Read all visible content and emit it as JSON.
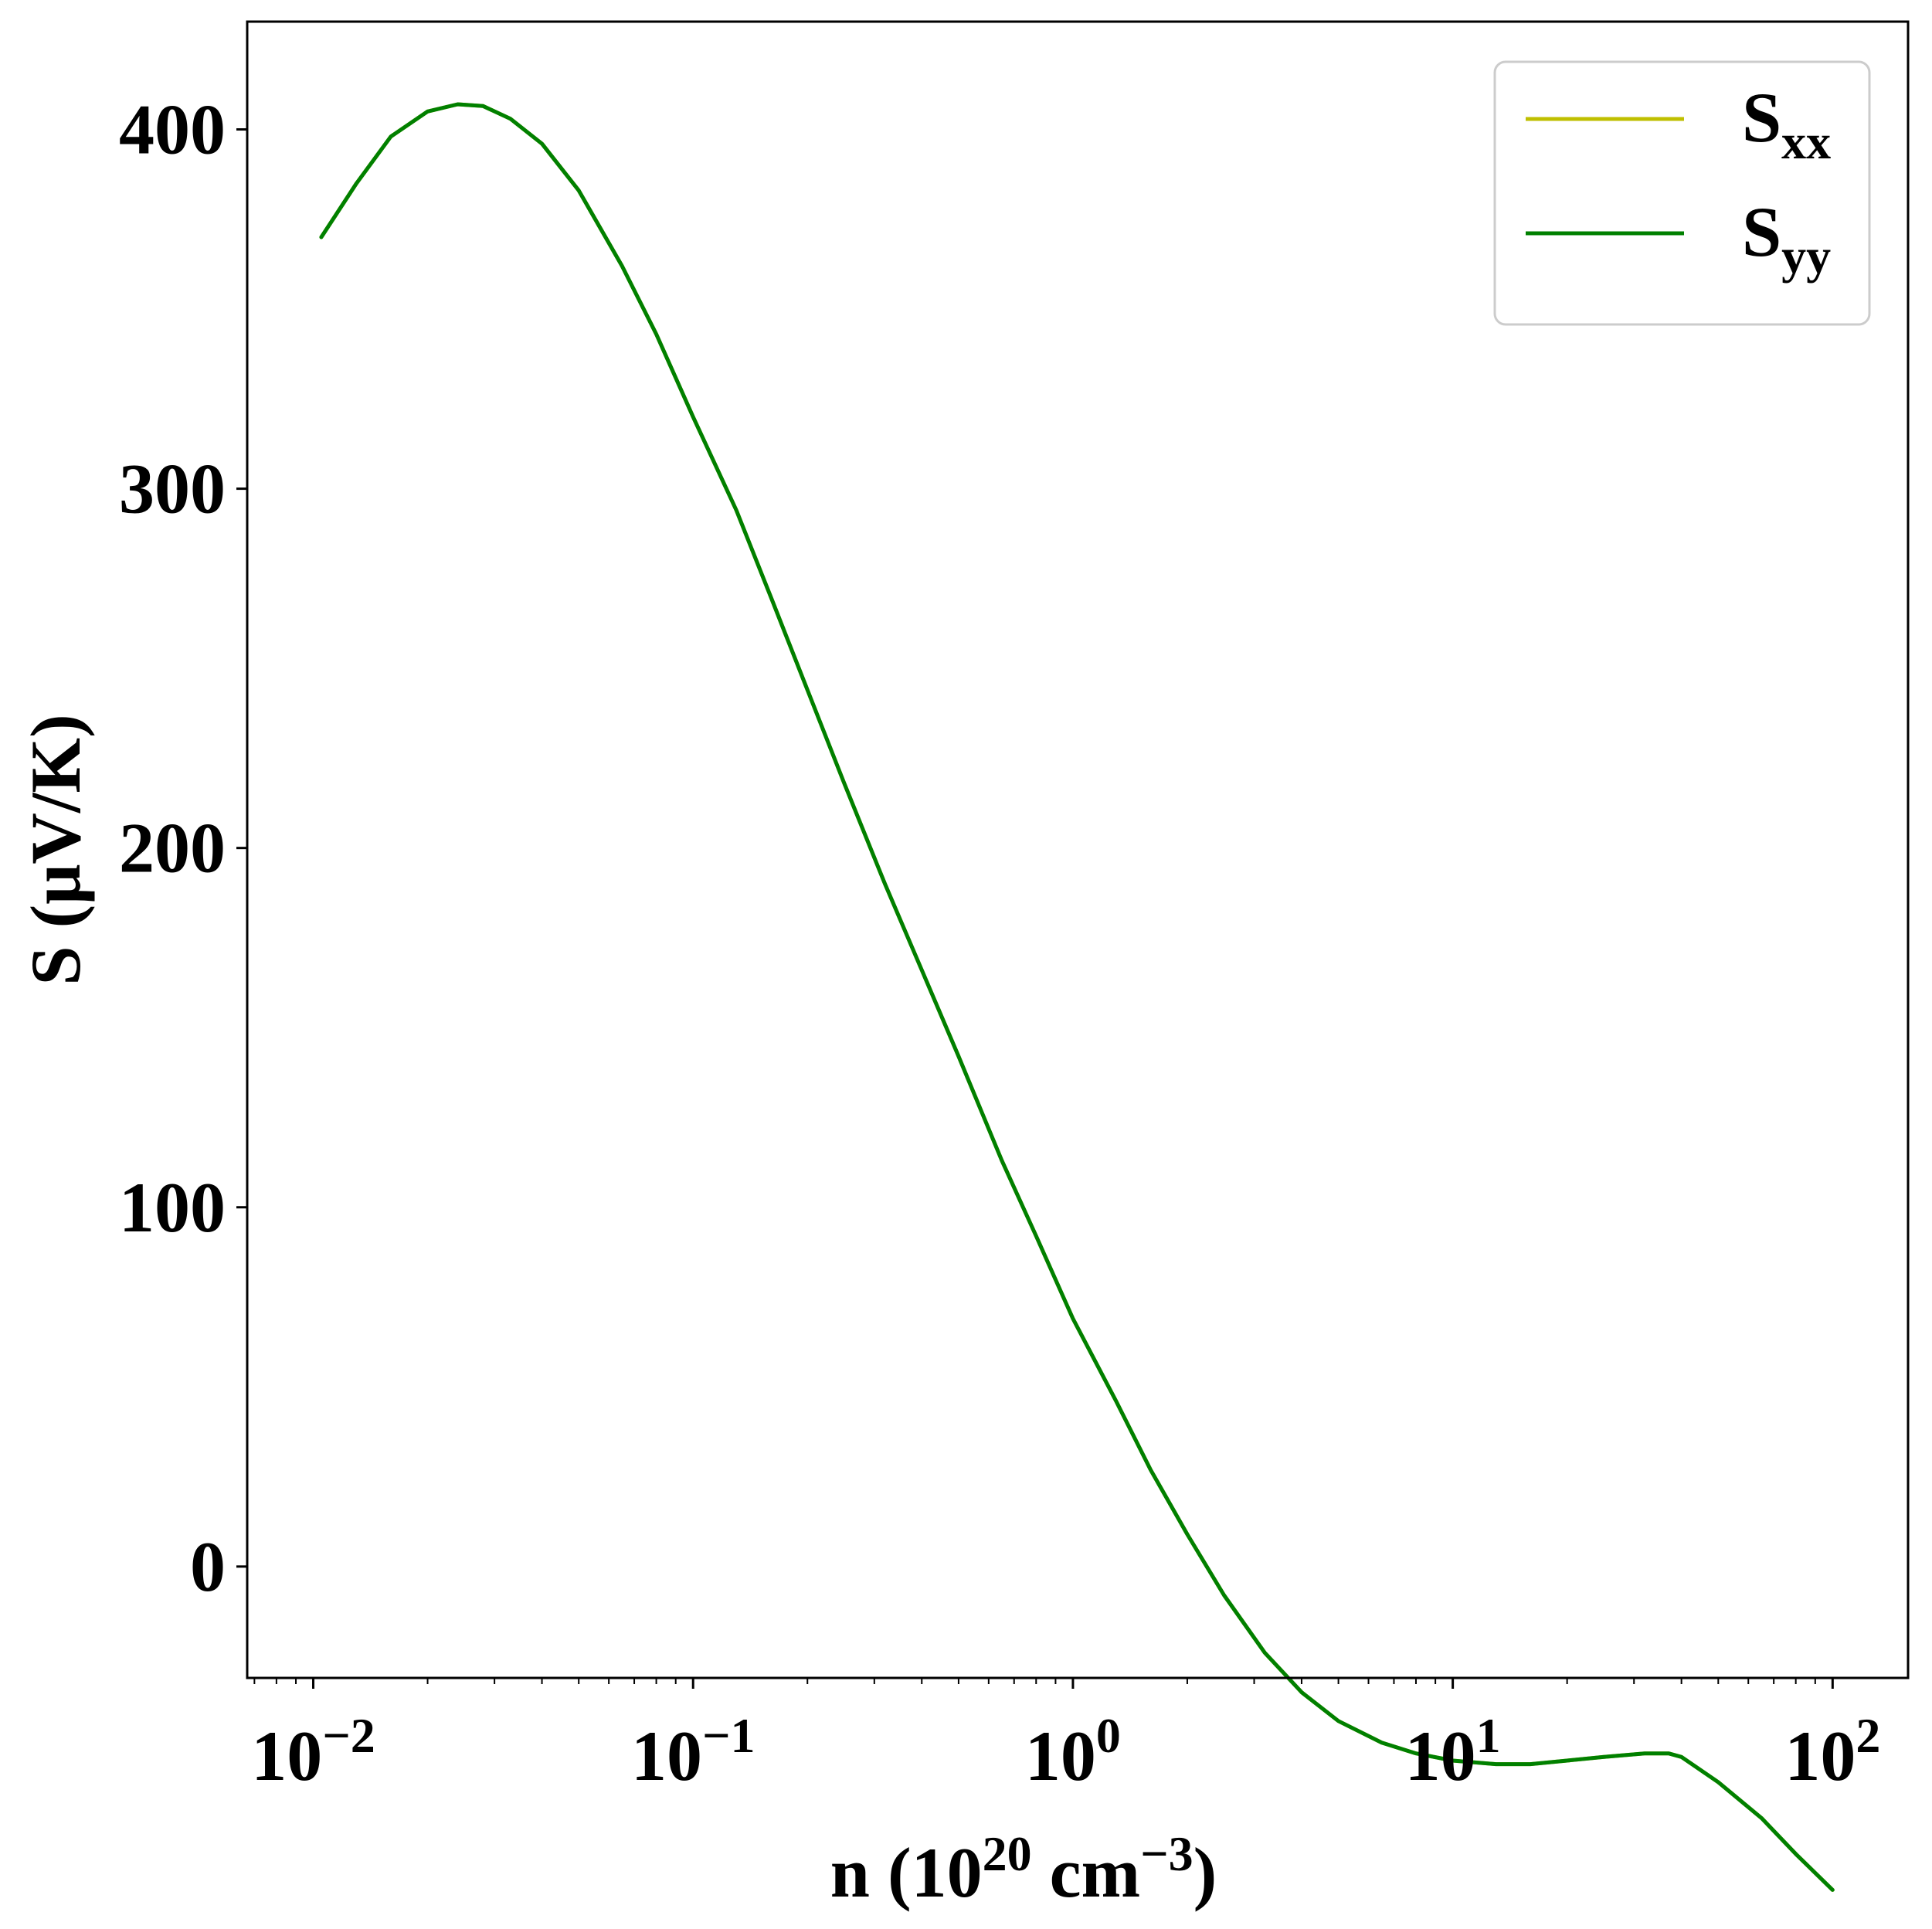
{
  "chart_data": {
    "type": "line",
    "title": "",
    "xlabel": {
      "base": "n (10",
      "exp1": "20",
      "mid": " cm",
      "exp2": "−3",
      "end": ")"
    },
    "ylabel": "S (μV/K)",
    "xscale": "log",
    "xlim": [
      0.0067,
      158
    ],
    "ylim": [
      -31,
      430
    ],
    "xticks": [
      {
        "value": 0.01,
        "base": "10",
        "exp": "−2"
      },
      {
        "value": 0.1,
        "base": "10",
        "exp": "−1"
      },
      {
        "value": 1,
        "base": "10",
        "exp": "0"
      },
      {
        "value": 10,
        "base": "10",
        "exp": "1"
      },
      {
        "value": 100,
        "base": "10",
        "exp": "2"
      }
    ],
    "yticks": [
      0,
      100,
      200,
      300,
      400
    ],
    "legend_position": "top-right",
    "grid": false,
    "x": [
      0.0105,
      0.013,
      0.016,
      0.02,
      0.024,
      0.028,
      0.033,
      0.04,
      0.05,
      0.065,
      0.08,
      0.1,
      0.13,
      0.16,
      0.2,
      0.25,
      0.32,
      0.4,
      0.5,
      0.65,
      0.8,
      1.0,
      1.3,
      1.6,
      2.0,
      2.5,
      3.2,
      4.0,
      5.0,
      6.5,
      8.0,
      10,
      13,
      16,
      20,
      25,
      32,
      37,
      40,
      50,
      65,
      80,
      100
    ],
    "series": [
      {
        "name": {
          "base": "S",
          "sub": "xx"
        },
        "color": "#bfbf00",
        "values": [
          370,
          385,
          398,
          405,
          407,
          406.5,
          403,
          396,
          383,
          362,
          343,
          320,
          294,
          270,
          244,
          218,
          190,
          166,
          142,
          113,
          92,
          69,
          46,
          27,
          9,
          -8,
          -24,
          -35,
          -43,
          -49,
          -52,
          -54,
          -55,
          -55,
          -54,
          -53,
          -52,
          -52,
          -53,
          -60,
          -70,
          -80,
          -90
        ]
      },
      {
        "name": {
          "base": "S",
          "sub": "yy"
        },
        "color": "#008000",
        "values": [
          370,
          385,
          398,
          405,
          407,
          406.5,
          403,
          396,
          383,
          362,
          343,
          320,
          294,
          270,
          244,
          218,
          190,
          166,
          142,
          113,
          92,
          69,
          46,
          27,
          9,
          -8,
          -24,
          -35,
          -43,
          -49,
          -52,
          -54,
          -55,
          -55,
          -54,
          -53,
          -52,
          -52,
          -53,
          -60,
          -70,
          -80,
          -90
        ]
      }
    ]
  }
}
